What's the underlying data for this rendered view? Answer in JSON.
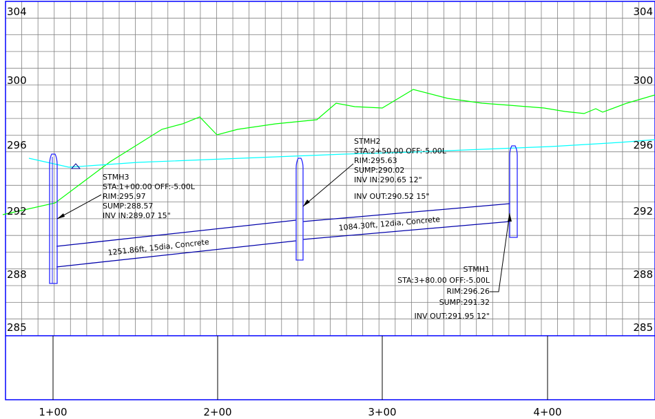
{
  "colors": {
    "grid": "#7f7f7f",
    "border": "#0000ff",
    "ground": "#00ff00",
    "hgl": "#00ffff",
    "pipe": "#0000aa",
    "structure": "#2323ff",
    "text": "#000000"
  },
  "grid": {
    "v_lines": 40,
    "h_lines": 20
  },
  "elevation_labels_left": [
    "304",
    "300",
    "296",
    "292",
    "288",
    "285"
  ],
  "elevation_labels_right": [
    "304",
    "300",
    "296",
    "292",
    "288",
    "285"
  ],
  "station_labels": [
    "1+00",
    "2+00",
    "3+00",
    "4+00"
  ],
  "structures": [
    {
      "name": "STMH3",
      "lines": [
        "STMH3",
        "STA:1+00.00 OFF:-5.00L",
        "RIM:295.97",
        "SUMP:288.57",
        "INV IN:289.07 15\""
      ]
    },
    {
      "name": "STMH2",
      "lines": [
        "STMH2",
        "STA:2+50.00 OFF:-5.00L",
        "RIM:295.63",
        "SUMP:290.02",
        "INV IN:290.65 12\"",
        "INV OUT:290.52 15\""
      ]
    },
    {
      "name": "STMH1",
      "lines": [
        "STMH1",
        "STA:3+80.00 OFF:-5.00L",
        "RIM:296.26",
        "SUMP:291.32",
        "INV OUT:291.95 12\""
      ]
    }
  ],
  "pipes": [
    {
      "label": "1251.86ft, 15dia, Concrete"
    },
    {
      "label": "1084.30ft, 12dia, Concrete"
    }
  ]
}
